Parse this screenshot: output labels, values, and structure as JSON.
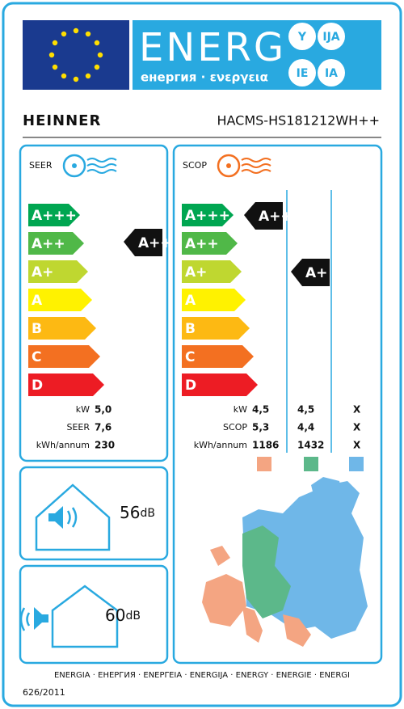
{
  "header": {
    "energy": "ENERG",
    "subtitle": "енергия · ενεργεια",
    "languages": [
      "Y",
      "IJA",
      "IE",
      "IA"
    ]
  },
  "brand": "HEINNER",
  "model": "HACMS-HS181212WH++",
  "cooling": {
    "label": "SEER",
    "classes": [
      "A+++",
      "A++",
      "A+",
      "A",
      "B",
      "C",
      "D"
    ],
    "rating": "A++",
    "rows": [
      {
        "label": "kW",
        "value": "5,0"
      },
      {
        "label": "SEER",
        "value": "7,6"
      },
      {
        "label": "kWh/annum",
        "value": "230"
      }
    ]
  },
  "heating": {
    "label": "SCOP",
    "classes": [
      "A+++",
      "A++",
      "A+",
      "A",
      "B",
      "C",
      "D"
    ],
    "ratings": [
      "A+++",
      "A+"
    ],
    "rows": [
      {
        "label": "kW",
        "values": [
          "4,5",
          "4,5",
          "X"
        ]
      },
      {
        "label": "SCOP",
        "values": [
          "5,3",
          "4,4",
          "X"
        ]
      },
      {
        "label": "kWh/annum",
        "values": [
          "1186",
          "1432",
          "X"
        ]
      }
    ]
  },
  "noise": {
    "indoor": {
      "value": "56",
      "unit": "dB"
    },
    "outdoor": {
      "value": "60",
      "unit": "dB"
    }
  },
  "footer": {
    "languages": "ENERGIA · ЕНЕРГИЯ · ΕΝΕΡΓΕΙΑ · ENERGIJA · ENERGY · ENERGIE · ENERGI",
    "regulation": "626/2011"
  }
}
